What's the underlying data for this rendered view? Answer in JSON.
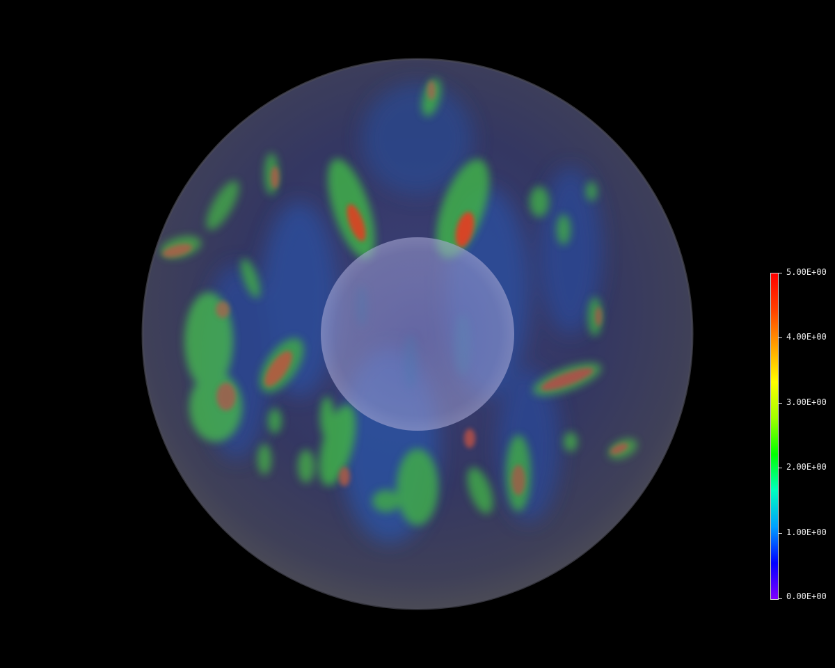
{
  "colorbar": {
    "labels": [
      "5.00E+00",
      "4.00E+00",
      "3.00E+00",
      "2.00E+00",
      "1.00E+00",
      "0.00E+00"
    ],
    "min": 0,
    "max": 5,
    "colormap": [
      "#8000ff",
      "#0000ff",
      "#00a0ff",
      "#00ffc0",
      "#00ff00",
      "#a0ff00",
      "#ffff00",
      "#ffa000",
      "#ff4000",
      "#ff0000"
    ]
  },
  "colors": {
    "background": "#000000",
    "outer_sphere": "#3a3f63",
    "inner_sphere": "#8a8cc8"
  }
}
